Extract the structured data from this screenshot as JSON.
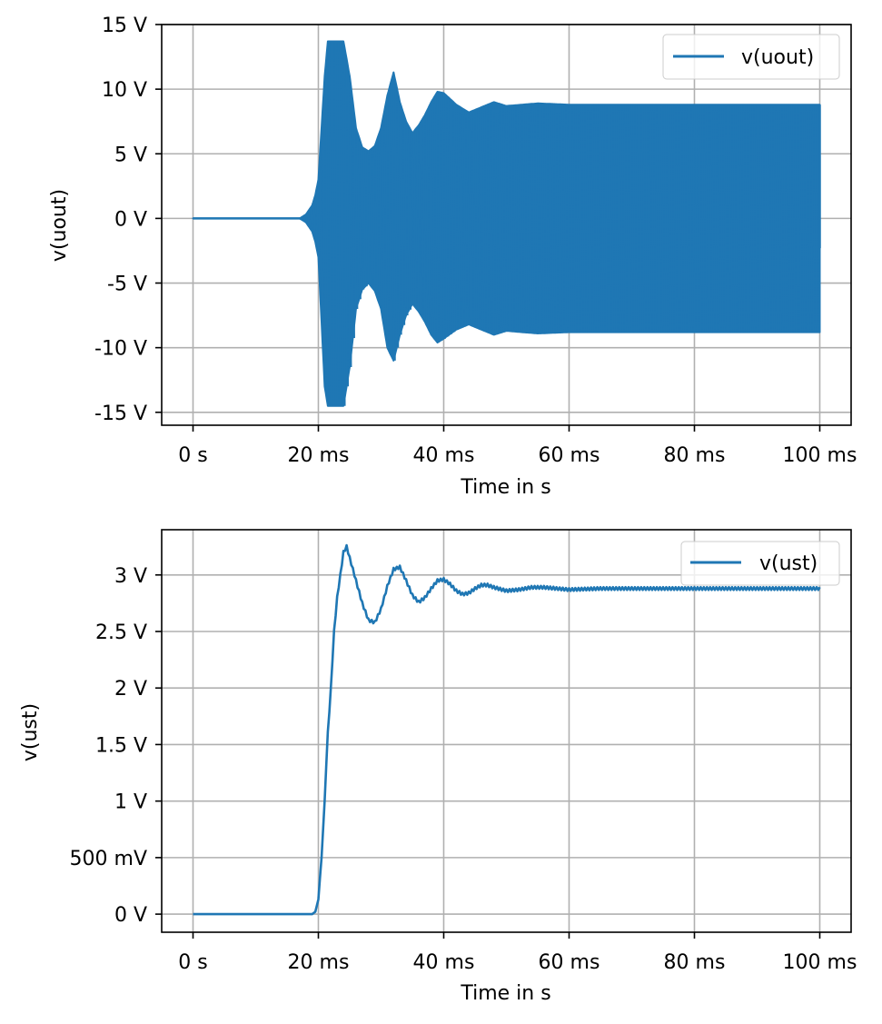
{
  "colors": {
    "series": "#1f77b4",
    "grid": "#b0b0b0",
    "axes": "#000000",
    "legend_border": "#cccccc"
  },
  "chart_data": [
    {
      "type": "line",
      "xlabel": "Time in s",
      "ylabel": "v(uout)",
      "xlim": [
        -0.005,
        0.105
      ],
      "ylim": [
        -16,
        15
      ],
      "grid": true,
      "legend_placement": "top-right",
      "x_ticks": [
        {
          "value": 0,
          "label": "0 s"
        },
        {
          "value": 0.02,
          "label": "20 ms"
        },
        {
          "value": 0.04,
          "label": "40 ms"
        },
        {
          "value": 0.06,
          "label": "60 ms"
        },
        {
          "value": 0.08,
          "label": "80 ms"
        },
        {
          "value": 0.1,
          "label": "100 ms"
        }
      ],
      "y_ticks": [
        {
          "value": 15,
          "label": "15 V"
        },
        {
          "value": 10,
          "label": "10 V"
        },
        {
          "value": 5,
          "label": "5 V"
        },
        {
          "value": 0,
          "label": "0 V"
        },
        {
          "value": -5,
          "label": "-5 V"
        },
        {
          "value": -10,
          "label": "-10 V"
        },
        {
          "value": -15,
          "label": "-15 V"
        }
      ],
      "series": [
        {
          "name": "v(uout)",
          "style": "oscillating-envelope",
          "envelope": {
            "t": [
              0,
              0.017,
              0.018,
              0.019,
              0.0195,
              0.02,
              0.0205,
              0.021,
              0.0215,
              0.022,
              0.023,
              0.024,
              0.025,
              0.026,
              0.027,
              0.028,
              0.029,
              0.03,
              0.031,
              0.032,
              0.033,
              0.034,
              0.035,
              0.036,
              0.037,
              0.038,
              0.039,
              0.04,
              0.042,
              0.044,
              0.046,
              0.048,
              0.05,
              0.055,
              0.06,
              0.07,
              0.08,
              0.09,
              0.1
            ],
            "upper": [
              0,
              0,
              0.3,
              1.0,
              1.8,
              3.0,
              7.0,
              11.0,
              13.7,
              13.7,
              13.7,
              13.7,
              11.0,
              7.0,
              5.5,
              5.2,
              5.6,
              7.0,
              9.5,
              11.3,
              9.0,
              7.5,
              6.6,
              7.2,
              8.0,
              9.0,
              9.8,
              9.7,
              8.8,
              8.2,
              8.6,
              9.0,
              8.7,
              8.9,
              8.8,
              8.8,
              8.8,
              8.8,
              8.8
            ],
            "lower": [
              0,
              0,
              -0.3,
              -1.0,
              -1.8,
              -3.0,
              -8.0,
              -13.0,
              -14.5,
              -14.5,
              -14.5,
              -14.5,
              -11.5,
              -7.0,
              -5.5,
              -5.0,
              -5.6,
              -7.0,
              -10.0,
              -11.0,
              -9.0,
              -7.5,
              -6.6,
              -7.2,
              -8.0,
              -9.0,
              -9.6,
              -9.3,
              -8.6,
              -8.2,
              -8.6,
              -9.0,
              -8.7,
              -8.9,
              -8.8,
              -8.8,
              -8.8,
              -8.8,
              -8.8
            ]
          },
          "end_value": -2.3
        }
      ]
    },
    {
      "type": "line",
      "xlabel": "Time in s",
      "ylabel": "v(ust)",
      "xlim": [
        -0.005,
        0.105
      ],
      "ylim": [
        -0.16,
        3.4
      ],
      "grid": true,
      "legend_placement": "top-right",
      "x_ticks": [
        {
          "value": 0,
          "label": "0 s"
        },
        {
          "value": 0.02,
          "label": "20 ms"
        },
        {
          "value": 0.04,
          "label": "40 ms"
        },
        {
          "value": 0.06,
          "label": "60 ms"
        },
        {
          "value": 0.08,
          "label": "80 ms"
        },
        {
          "value": 0.1,
          "label": "100 ms"
        }
      ],
      "y_ticks": [
        {
          "value": 3,
          "label": "3 V"
        },
        {
          "value": 2.5,
          "label": "2.5 V"
        },
        {
          "value": 2,
          "label": "2 V"
        },
        {
          "value": 1.5,
          "label": "1.5 V"
        },
        {
          "value": 1,
          "label": "1 V"
        },
        {
          "value": 0.5,
          "label": "500 mV"
        },
        {
          "value": 0,
          "label": "0 V"
        }
      ],
      "series": [
        {
          "name": "v(ust)",
          "x": [
            0,
            0.019,
            0.0195,
            0.02,
            0.0205,
            0.021,
            0.0215,
            0.022,
            0.0225,
            0.023,
            0.0235,
            0.024,
            0.0245,
            0.025,
            0.026,
            0.027,
            0.028,
            0.029,
            0.03,
            0.031,
            0.032,
            0.033,
            0.034,
            0.035,
            0.036,
            0.037,
            0.038,
            0.039,
            0.04,
            0.041,
            0.042,
            0.043,
            0.044,
            0.045,
            0.046,
            0.047,
            0.048,
            0.05,
            0.052,
            0.054,
            0.056,
            0.058,
            0.06,
            0.065,
            0.07,
            0.08,
            0.09,
            0.1
          ],
          "y": [
            0,
            0,
            0.02,
            0.13,
            0.5,
            1.0,
            1.6,
            2.0,
            2.5,
            2.8,
            3.0,
            3.2,
            3.25,
            3.15,
            2.95,
            2.75,
            2.6,
            2.58,
            2.7,
            2.9,
            3.05,
            3.07,
            2.95,
            2.82,
            2.76,
            2.8,
            2.88,
            2.95,
            2.96,
            2.92,
            2.86,
            2.83,
            2.84,
            2.88,
            2.91,
            2.91,
            2.89,
            2.86,
            2.87,
            2.89,
            2.89,
            2.88,
            2.87,
            2.88,
            2.88,
            2.88,
            2.88,
            2.88
          ],
          "ripple": 0.025
        }
      ]
    }
  ]
}
